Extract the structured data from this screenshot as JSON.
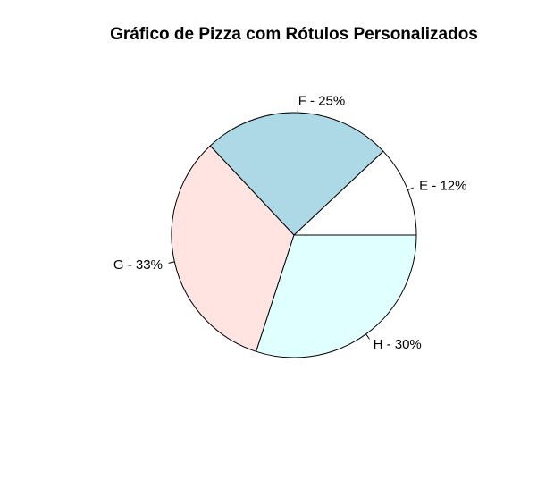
{
  "chart_data": {
    "type": "pie",
    "title": "Gráfico de Pizza com Rótulos Personalizados",
    "start_angle_deg": 0,
    "direction": "counterclockwise",
    "slices": [
      {
        "label": "E - 12%",
        "value": 12,
        "color": "#ffffff"
      },
      {
        "label": "F - 25%",
        "value": 25,
        "color": "#add8e6"
      },
      {
        "label": "G - 33%",
        "value": 33,
        "color": "#ffe4e1"
      },
      {
        "label": "H - 30%",
        "value": 30,
        "color": "#e0ffff"
      }
    ]
  }
}
